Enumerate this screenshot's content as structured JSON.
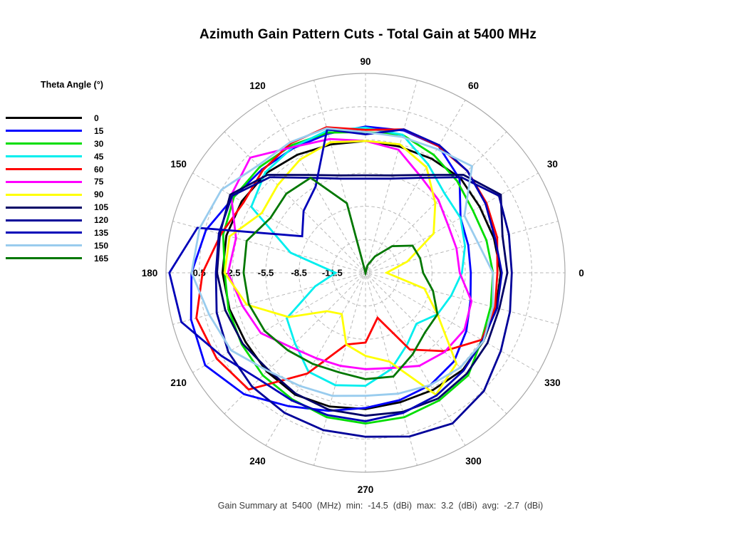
{
  "title": "Azimuth Gain Pattern Cuts - Total Gain at 5400 MHz",
  "legend": {
    "title": "Theta Angle (°)"
  },
  "footer": "Gain Summary at  5400  (MHz)  min:  -14.5  (dBi)  max:  3.2  (dBi)  avg:  -2.7  (dBi)",
  "chart_data": {
    "type": "line",
    "polar": true,
    "title": "Azimuth Gain Pattern Cuts - Total Gain at 5400 MHz",
    "units": "dBi",
    "frequency_mhz": 5400,
    "summary": {
      "min_dbi": -14.5,
      "max_dbi": 3.2,
      "avg_dbi": -2.7
    },
    "rlim": [
      -14.5,
      3.5
    ],
    "radial_ticks": {
      "values": [
        0.5,
        -2.5,
        -5.5,
        -8.5,
        -11.5
      ],
      "labels": [
        "0.5",
        "-2.5",
        "-5.5",
        "-8.5",
        "-11.5"
      ]
    },
    "angle_ticks_deg": [
      0,
      30,
      60,
      90,
      120,
      150,
      180,
      210,
      240,
      270,
      300,
      330
    ],
    "spoke_step_deg": 15,
    "grid_color": "#b8b8b8",
    "outer_circle_color": "#a8a8a8",
    "azimuth_deg": [
      0,
      15,
      30,
      45,
      60,
      75,
      90,
      105,
      120,
      135,
      150,
      165,
      180,
      195,
      210,
      225,
      240,
      255,
      270,
      285,
      300,
      315,
      330,
      345
    ],
    "legend_title": "Theta Angle (°)",
    "series": [
      {
        "name": "0",
        "color": "#000000",
        "values": [
          -2.3,
          -2.5,
          -2.6,
          -2.4,
          -2.6,
          -2.7,
          -2.6,
          -2.5,
          -2.2,
          -1.8,
          -1.6,
          -1.5,
          -1.6,
          -1.8,
          -2.0,
          -1.9,
          -1.8,
          -2.0,
          -2.2,
          -2.4,
          -2.3,
          -2.1,
          -2.2,
          -2.3
        ]
      },
      {
        "name": "15",
        "color": "#0000ff",
        "values": [
          -5.0,
          -4.9,
          -4.6,
          -2.5,
          -1.3,
          -1.2,
          -1.3,
          -1.5,
          -1.5,
          -1.3,
          -0.8,
          0.4,
          1.2,
          1.8,
          2.2,
          1.0,
          -0.6,
          -1.6,
          -2.3,
          -2.6,
          -2.8,
          -3.2,
          -4.0,
          -4.7
        ]
      },
      {
        "name": "30",
        "color": "#00dd00",
        "values": [
          -3.0,
          -3.2,
          -3.3,
          -2.8,
          -2.2,
          -1.6,
          -1.8,
          -1.4,
          -1.2,
          -1.0,
          -0.8,
          -1.2,
          -1.8,
          -1.7,
          -1.6,
          -1.4,
          -1.3,
          -1.0,
          -0.9,
          -1.0,
          -1.2,
          -1.4,
          -2.4,
          -2.8
        ]
      },
      {
        "name": "45",
        "color": "#00eeee",
        "values": [
          -5.8,
          -5.2,
          -4.6,
          -4.4,
          -3.2,
          -1.6,
          -1.4,
          -1.2,
          -1.4,
          -1.7,
          -2.6,
          -7.5,
          -11.8,
          -9.8,
          -6.3,
          -5.5,
          -4.2,
          -4.0,
          -4.3,
          -5.5,
          -7.0,
          -8.0,
          -7.0,
          -6.5
        ]
      },
      {
        "name": "60",
        "color": "#ff0000",
        "values": [
          -2.6,
          -2.2,
          -1.9,
          -1.5,
          -1.3,
          -1.1,
          -1.6,
          -0.9,
          -1.0,
          -1.4,
          -1.8,
          -1.0,
          0.2,
          1.3,
          1.0,
          0.4,
          -4.0,
          -7.8,
          -8.2,
          -10.3,
          -6.5,
          -4.5,
          -2.4,
          -2.4
        ]
      },
      {
        "name": "75",
        "color": "#ff00ff",
        "values": [
          -6.0,
          -6.0,
          -5.9,
          -5.2,
          -4.5,
          -3.0,
          -2.6,
          -2.0,
          -1.4,
          0.2,
          -0.5,
          -2.4,
          -2.1,
          -3.0,
          -3.6,
          -5.0,
          -5.6,
          -5.8,
          -5.8,
          -5.6,
          -4.8,
          -4.4,
          -4.2,
          -4.6
        ]
      },
      {
        "name": "90",
        "color": "#ffff00",
        "values": [
          -12.6,
          -10.6,
          -7.4,
          -5.6,
          -3.5,
          -2.5,
          -2.6,
          -2.3,
          -2.7,
          -3.3,
          -3.7,
          -1.8,
          -1.8,
          -3.4,
          -6.5,
          -9.6,
          -10.2,
          -7.8,
          -7.0,
          -6.2,
          -1.8,
          -2.9,
          -7.0,
          -9.0
        ]
      },
      {
        "name": "105",
        "color": "#000066",
        "values": [
          -1.7,
          -1.7,
          -0.4,
          -2.0,
          -4.3,
          -5.4,
          -5.7,
          -5.4,
          -4.3,
          -2.0,
          -0.4,
          -0.9,
          -1.1,
          -1.4,
          -1.7,
          -2.1,
          -1.9,
          -1.7,
          -1.6,
          -1.5,
          -1.4,
          -1.6,
          -1.8,
          -2.0
        ]
      },
      {
        "name": "120",
        "color": "#000099",
        "values": [
          -1.3,
          -1.1,
          -0.6,
          -2.3,
          -4.6,
          -5.7,
          -6.0,
          -5.7,
          -4.6,
          -2.3,
          -0.6,
          -0.8,
          -1.0,
          -0.6,
          -0.2,
          0.0,
          0.1,
          0.2,
          0.3,
          0.8,
          1.2,
          0.6,
          -0.4,
          -1.0
        ]
      },
      {
        "name": "135",
        "color": "#0000b8",
        "values": [
          -2.2,
          -2.4,
          -2.0,
          -1.5,
          -1.2,
          -1.1,
          -2.0,
          -1.1,
          -5.5,
          -6.6,
          -7.9,
          1.2,
          3.2,
          2.7,
          0.5,
          -0.9,
          -1.2,
          -1.2,
          -1.1,
          -1.4,
          -1.7,
          -2.0,
          -2.3,
          -2.2
        ]
      },
      {
        "name": "150",
        "color": "#99ccee",
        "values": [
          -3.0,
          -4.0,
          -4.2,
          -0.9,
          -1.6,
          -1.8,
          -1.8,
          -1.0,
          -0.9,
          -0.8,
          0.5,
          1.0,
          1.2,
          0.1,
          -0.5,
          -2.0,
          -2.7,
          -3.0,
          -3.4,
          -3.2,
          -2.8,
          -2.4,
          -2.2,
          -2.6
        ]
      },
      {
        "name": "165",
        "color": "#007700",
        "values": [
          -9.3,
          -9.4,
          -9.6,
          -11.1,
          -12.8,
          -13.8,
          -14.5,
          -8.0,
          -4.6,
          -4.4,
          -4.6,
          -3.4,
          -3.5,
          -3.6,
          -4.0,
          -4.6,
          -5.0,
          -5.2,
          -4.9,
          -4.8,
          -6.0,
          -6.9,
          -7.0,
          -8.2
        ]
      }
    ]
  }
}
